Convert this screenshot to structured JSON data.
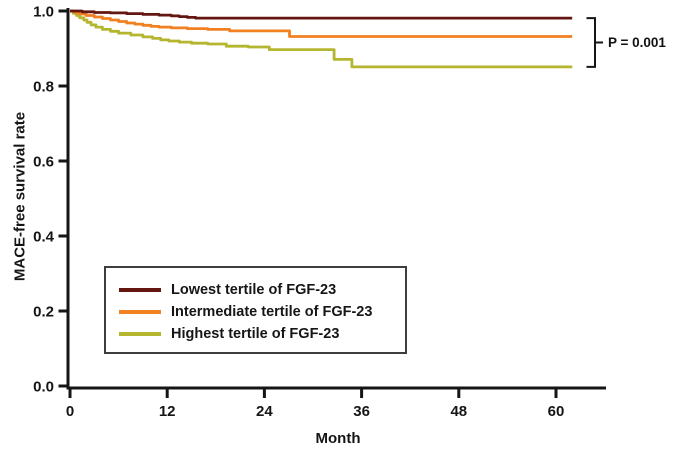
{
  "chart_data": {
    "type": "line",
    "subtype": "kaplan-meier-step",
    "title": "",
    "xlabel": "Month",
    "ylabel": "MACE-free survival rate",
    "xlim": [
      0,
      66
    ],
    "ylim": [
      0.0,
      1.0
    ],
    "grid": false,
    "legend_position": "inside lower-left",
    "x_ticks": [
      0,
      12,
      24,
      36,
      48,
      60
    ],
    "x_tick_labels": [
      "0",
      "12",
      "24",
      "36",
      "48",
      "60"
    ],
    "y_ticks": [
      1.0,
      0.8,
      0.6,
      0.4,
      0.2,
      0.0
    ],
    "y_tick_labels": [
      "1.0",
      "0.8",
      "0.6",
      "0.4",
      "0.2",
      "0.0"
    ],
    "axis_color": "#151515",
    "annotation": {
      "label": "P = 0.001",
      "bracket_spans": "from Lowest tertile curve end to Highest tertile curve end"
    },
    "series": [
      {
        "name": "Lowest tertile of FGF-23",
        "color": "#641711",
        "points": [
          [
            0,
            1.0
          ],
          [
            1.5,
            0.998
          ],
          [
            3,
            0.996
          ],
          [
            5,
            0.995
          ],
          [
            7,
            0.993
          ],
          [
            9,
            0.991
          ],
          [
            11,
            0.989
          ],
          [
            12.5,
            0.987
          ],
          [
            13.5,
            0.985
          ],
          [
            14.5,
            0.983
          ],
          [
            15.5,
            0.981
          ],
          [
            62,
            0.981
          ]
        ]
      },
      {
        "name": "Intermediate tertile of FGF-23",
        "color": "#f08021",
        "points": [
          [
            0,
            1.0
          ],
          [
            0.6,
            0.996
          ],
          [
            1.2,
            0.992
          ],
          [
            2,
            0.988
          ],
          [
            3,
            0.984
          ],
          [
            4,
            0.98
          ],
          [
            5,
            0.976
          ],
          [
            6,
            0.972
          ],
          [
            7,
            0.968
          ],
          [
            8,
            0.965
          ],
          [
            9,
            0.962
          ],
          [
            10,
            0.959
          ],
          [
            11,
            0.957
          ],
          [
            12.5,
            0.955
          ],
          [
            14.5,
            0.953
          ],
          [
            17,
            0.951
          ],
          [
            19.7,
            0.947
          ],
          [
            27.1,
            0.932
          ],
          [
            62,
            0.932
          ]
        ]
      },
      {
        "name": "Highest tertile of FGF-23",
        "color": "#b5b630",
        "points": [
          [
            0,
            1.0
          ],
          [
            0.4,
            0.994
          ],
          [
            0.8,
            0.988
          ],
          [
            1.2,
            0.982
          ],
          [
            1.7,
            0.976
          ],
          [
            2.1,
            0.97
          ],
          [
            2.6,
            0.963
          ],
          [
            3.2,
            0.957
          ],
          [
            4,
            0.951
          ],
          [
            5,
            0.946
          ],
          [
            6,
            0.941
          ],
          [
            7.5,
            0.936
          ],
          [
            9,
            0.931
          ],
          [
            10.2,
            0.927
          ],
          [
            11.2,
            0.923
          ],
          [
            12.2,
            0.92
          ],
          [
            13.5,
            0.917
          ],
          [
            15,
            0.914
          ],
          [
            17,
            0.912
          ],
          [
            19.3,
            0.906
          ],
          [
            22,
            0.904
          ],
          [
            24.6,
            0.897
          ],
          [
            32.6,
            0.871
          ],
          [
            34.8,
            0.851
          ],
          [
            62,
            0.851
          ]
        ]
      }
    ]
  }
}
